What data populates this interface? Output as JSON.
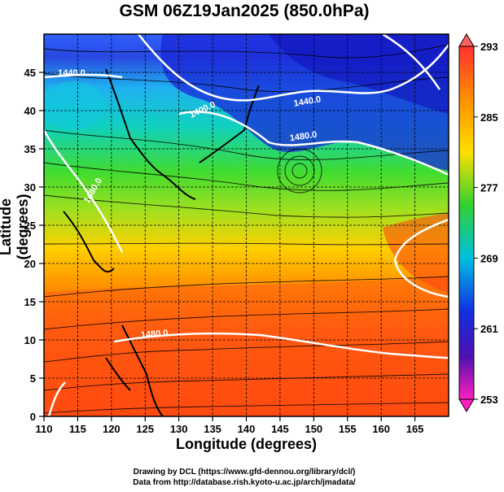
{
  "title": "GSM 06Z19Jan2025 (850.0hPa)",
  "xaxis": {
    "label": "Longitude (degrees)",
    "range": [
      110,
      170
    ],
    "ticks": [
      "110",
      "115",
      "120",
      "125",
      "130",
      "135",
      "140",
      "145",
      "150",
      "155",
      "160",
      "165"
    ]
  },
  "yaxis": {
    "label": "Latitude  (degrees)",
    "range": [
      0,
      50
    ],
    "ticks": [
      "0",
      "5",
      "10",
      "15",
      "20",
      "25",
      "30",
      "35",
      "40",
      "45"
    ]
  },
  "colorbar": {
    "ticks": [
      "253",
      "261",
      "269",
      "277",
      "285",
      "293"
    ],
    "range": [
      253,
      293
    ]
  },
  "contour_labels": [
    "1440.0",
    "1400.0",
    "1440.0",
    "1480.0",
    "1480.0",
    "1480.0"
  ],
  "credits": {
    "line1": "Drawing by DCL (https://www.gfd-dennou.org/library/dcl/)",
    "line2": "Data from http://database.rish.kyoto-u.ac.jp/arch/jmadata/"
  },
  "colors": {
    "cold": "#1a20d0",
    "cool": "#00b0ff",
    "mid": "#30e030",
    "warm": "#ffc000",
    "hot": "#ff3010",
    "max": "#ff6060",
    "min": "#ff20c0"
  }
}
